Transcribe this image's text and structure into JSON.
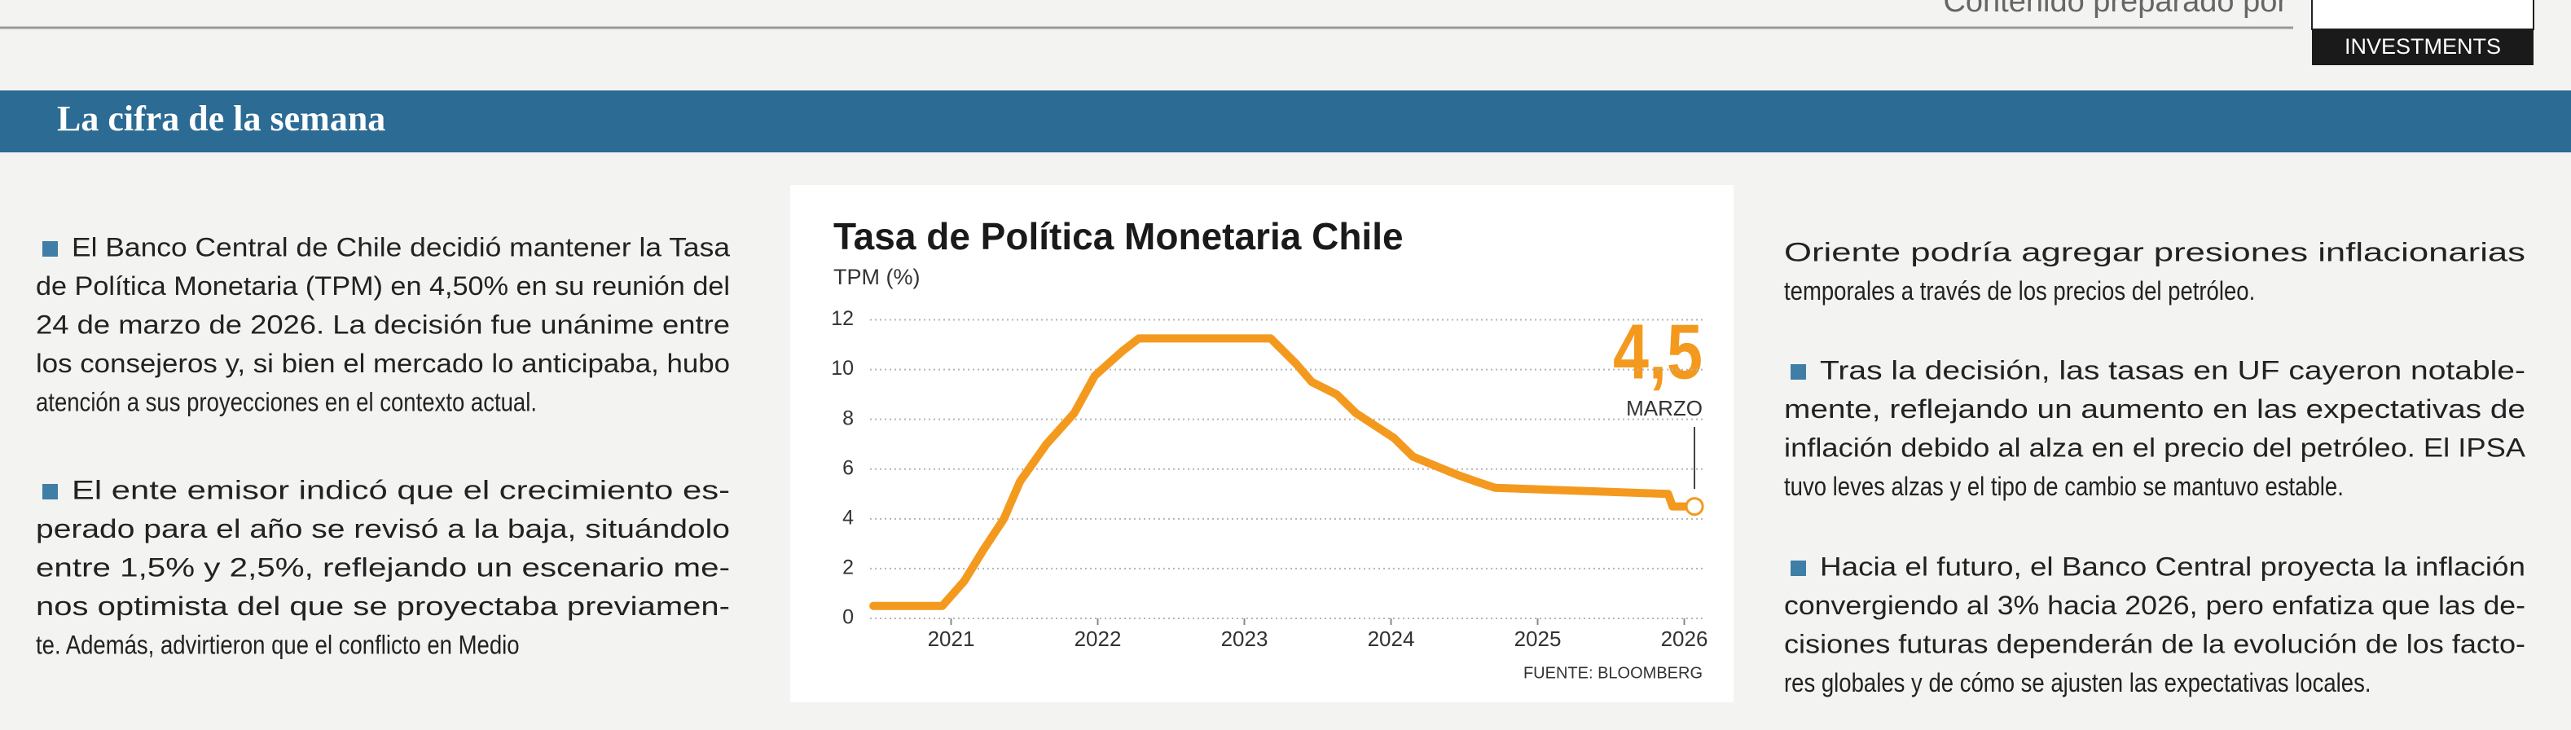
{
  "header": {
    "credit": "Contenido preparado por",
    "brand": "INVESTMENTS"
  },
  "section_title": "La cifra de la semana",
  "left_column": [
    {
      "bullet": true,
      "lines": [
        "El Banco Central de Chile decidió mantener la Tasa",
        "de Política Monetaria (TPM) en 4,50% en su reunión del",
        "24 de marzo de 2026. La decisión fue unánime entre",
        "los consejeros y, si bien el mercado lo anticipaba, hubo",
        "atención a sus proyecciones en el contexto actual."
      ]
    },
    {
      "bullet": true,
      "lines": [
        "El ente emisor indicó que el crecimiento es-",
        "perado para el año se revisó a la baja, situándolo",
        "entre 1,5% y 2,5%, reflejando un escenario me-",
        "nos optimista del que se proyectaba previamen-",
        "te. Además, advirtieron que el conflicto en Medio"
      ]
    }
  ],
  "right_column": [
    {
      "bullet": false,
      "lines": [
        "Oriente podría agregar presiones inflacionarias",
        "temporales a través de los precios del petróleo."
      ]
    },
    {
      "bullet": true,
      "lines": [
        "Tras la decisión, las tasas en UF cayeron notable-",
        "mente, reflejando un aumento en las expectativas de",
        "inflación debido al alza en el precio del petróleo. El IPSA",
        "tuvo leves alzas y el tipo de cambio se mantuvo estable."
      ]
    },
    {
      "bullet": true,
      "lines": [
        "Hacia el futuro, el Banco Central proyecta la inflación",
        "convergiendo al 3% hacia 2026, pero enfatiza que las de-",
        "cisiones futuras dependerán de la evolución de los facto-",
        "res globales y de cómo se ajusten las expectativas locales."
      ]
    }
  ],
  "chart_data": {
    "type": "line",
    "title": "Tasa de Política Monetaria Chile",
    "y_label": "TPM (%)",
    "annotation_value": "4,5",
    "annotation_label": "MARZO",
    "source": "FUENTE: BLOOMBERG",
    "color": "#f39a1e",
    "grid": true,
    "x": [
      2020.47,
      2020.94,
      2021.09,
      2021.22,
      2021.36,
      2021.47,
      2021.65,
      2021.84,
      2021.98,
      2022.17,
      2022.28,
      2023.18,
      2023.35,
      2023.46,
      2023.63,
      2023.76,
      2024.02,
      2024.15,
      2024.46,
      2024.58,
      2024.71,
      2025.89,
      2025.92,
      2026.07
    ],
    "values": [
      0.5,
      0.5,
      1.5,
      2.75,
      4.0,
      5.5,
      7.0,
      8.25,
      9.75,
      10.75,
      11.25,
      11.25,
      10.25,
      9.5,
      9.0,
      8.25,
      7.25,
      6.5,
      5.75,
      5.5,
      5.25,
      5.0,
      4.5,
      4.5
    ],
    "xlim": [
      2020.44,
      2026.14
    ],
    "xticks": [
      2021,
      2022,
      2023,
      2024,
      2025,
      2026
    ],
    "ylim": [
      0,
      12
    ],
    "yticks": [
      0,
      2,
      4,
      6,
      8,
      10,
      12
    ]
  }
}
